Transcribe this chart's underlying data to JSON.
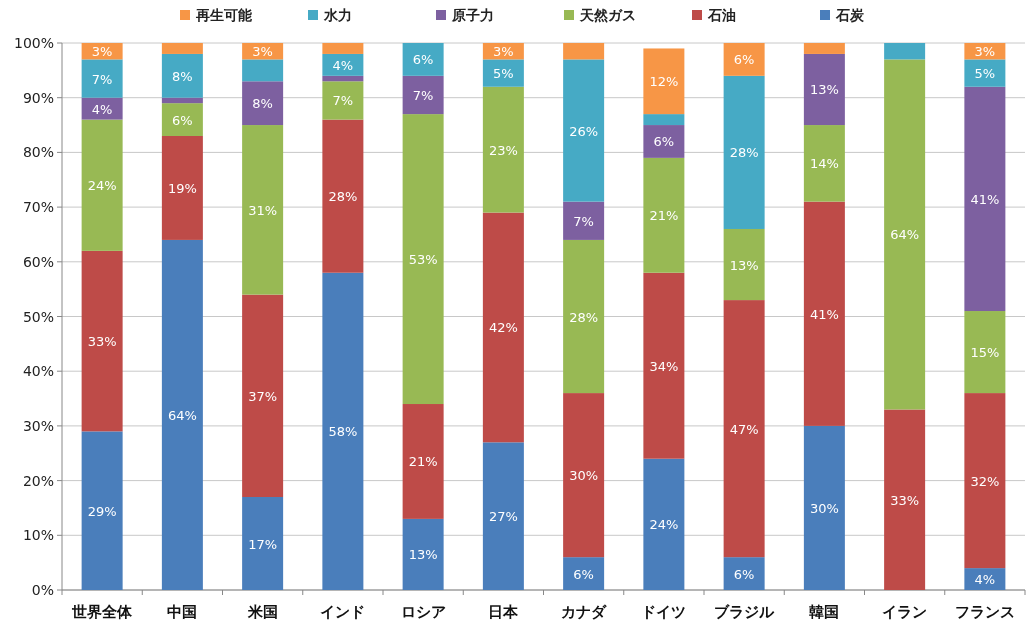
{
  "chart_data": {
    "type": "bar",
    "stacked": true,
    "legend": "top",
    "grid": "y",
    "categories": [
      "世界全体",
      "中国",
      "米国",
      "インド",
      "ロシア",
      "日本",
      "カナダ",
      "ドイツ",
      "ブラジル",
      "韓国",
      "イラン",
      "フランス"
    ],
    "ylim": [
      0,
      100
    ],
    "yticks": [
      {
        "value": 0,
        "label": "0%"
      },
      {
        "value": 10,
        "label": "10%"
      },
      {
        "value": 20,
        "label": "20%"
      },
      {
        "value": 30,
        "label": "30%"
      },
      {
        "value": 40,
        "label": "40%"
      },
      {
        "value": 50,
        "label": "50%"
      },
      {
        "value": 60,
        "label": "60%"
      },
      {
        "value": 70,
        "label": "70%"
      },
      {
        "value": 80,
        "label": "80%"
      },
      {
        "value": 90,
        "label": "90%"
      },
      {
        "value": 100,
        "label": "100%"
      }
    ],
    "series": [
      {
        "name": "石炭",
        "color": "#4a7ebb",
        "values": [
          29,
          64,
          17,
          58,
          13,
          27,
          6,
          24,
          6,
          30,
          0,
          4
        ],
        "value_labels": [
          "29%",
          "64%",
          "17%",
          "58%",
          "13%",
          "27%",
          "6%",
          "24%",
          "6%",
          "30%",
          null,
          "4%"
        ]
      },
      {
        "name": "石油",
        "color": "#be4b48",
        "values": [
          33,
          19,
          37,
          28,
          21,
          42,
          30,
          34,
          47,
          41,
          33,
          32
        ],
        "value_labels": [
          "33%",
          "19%",
          "37%",
          "28%",
          "21%",
          "42%",
          "30%",
          "34%",
          "47%",
          "41%",
          "33%",
          "32%"
        ]
      },
      {
        "name": "天然ガス",
        "color": "#98b954",
        "values": [
          24,
          6,
          31,
          7,
          53,
          23,
          28,
          21,
          13,
          14,
          64,
          15
        ],
        "value_labels": [
          "24%",
          "6%",
          "31%",
          "7%",
          "53%",
          "23%",
          "28%",
          "21%",
          "13%",
          "14%",
          "64%",
          "15%"
        ]
      },
      {
        "name": "原子力",
        "color": "#7d60a0",
        "values": [
          4,
          1,
          8,
          1,
          7,
          0,
          7,
          6,
          0,
          13,
          0,
          41
        ],
        "value_labels": [
          "4%",
          null,
          "8%",
          null,
          "7%",
          null,
          "7%",
          "6%",
          null,
          "13%",
          null,
          "41%"
        ]
      },
      {
        "name": "水力",
        "color": "#46aac5",
        "values": [
          7,
          8,
          4,
          4,
          6,
          5,
          26,
          2,
          28,
          0,
          3,
          5
        ],
        "value_labels": [
          "7%",
          "8%",
          null,
          "4%",
          "6%",
          "5%",
          "26%",
          null,
          "28%",
          null,
          null,
          "5%"
        ]
      },
      {
        "name": "再生可能",
        "color": "#f79646",
        "values": [
          3,
          2,
          3,
          2,
          0,
          3,
          3,
          12,
          6,
          2,
          0,
          3
        ],
        "value_labels": [
          "3%",
          null,
          "3%",
          null,
          null,
          "3%",
          null,
          "12%",
          "6%",
          null,
          null,
          "3%"
        ]
      }
    ]
  }
}
